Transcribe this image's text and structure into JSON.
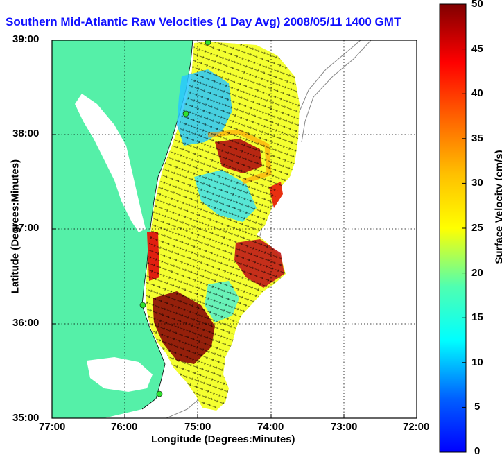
{
  "title": "Southern Mid-Atlantic Raw Velocities (1 Day Avg) 2008/05/11 1400 GMT",
  "x_axis": {
    "label": "Longitude (Degrees:Minutes)",
    "ticks": [
      "77:00",
      "76:00",
      "75:00",
      "74:00",
      "73:00",
      "72:00"
    ]
  },
  "y_axis": {
    "label": "Latitude (Degrees:Minutes)",
    "ticks": [
      "39:00",
      "38:00",
      "37:00",
      "36:00",
      "35:00"
    ]
  },
  "colorbar": {
    "label": "Surface Velocity (cm/s)",
    "ticks": [
      "50",
      "45",
      "40",
      "35",
      "30",
      "25",
      "20",
      "15",
      "10",
      "5",
      "0"
    ],
    "range": [
      0,
      50
    ],
    "colormap": "jet"
  },
  "colors": {
    "land": "#55f0a8",
    "title": "#1010ff",
    "water": "#ffffff"
  },
  "map_extent": {
    "lon_min": -77,
    "lon_max": -72,
    "lat_min": 35,
    "lat_max": 39
  }
}
